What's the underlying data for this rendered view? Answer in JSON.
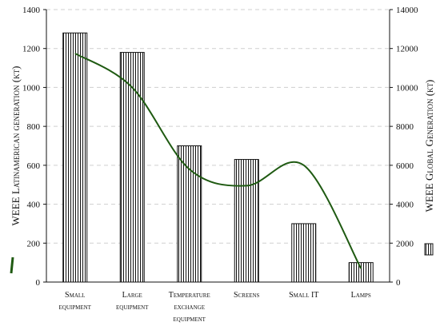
{
  "chart_data": {
    "type": "bar+line",
    "categories": [
      [
        "Small",
        "equipment"
      ],
      [
        "Large",
        "equipment"
      ],
      [
        "Temperature",
        "exchange",
        "equipment"
      ],
      [
        "Screens"
      ],
      [
        "Small IT"
      ],
      [
        "Lamps"
      ]
    ],
    "bar_series": {
      "axis": "right",
      "values": [
        12800,
        11800,
        7000,
        6300,
        3000,
        1000
      ],
      "color": "#111111",
      "pattern": "vertical-hatch"
    },
    "line_series": {
      "axis": "left",
      "values": [
        1175,
        1000,
        580,
        495,
        600,
        70
      ],
      "color": "#1f5a12"
    },
    "left_axis": {
      "label": "WEEE Latinamerican generation (kt)",
      "ylim": [
        0,
        1400
      ],
      "ticks": [
        "0",
        "200",
        "400",
        "600",
        "800",
        "1000",
        "1200",
        "1400"
      ]
    },
    "right_axis": {
      "label": "WEEE Global Generation (kt)",
      "ylim": [
        0,
        14000
      ],
      "ticks": [
        "0",
        "2000",
        "4000",
        "6000",
        "8000",
        "10000",
        "12000",
        "14000"
      ]
    },
    "grid": true,
    "legend": [
      "line-key-left",
      "bar-key-right"
    ]
  }
}
